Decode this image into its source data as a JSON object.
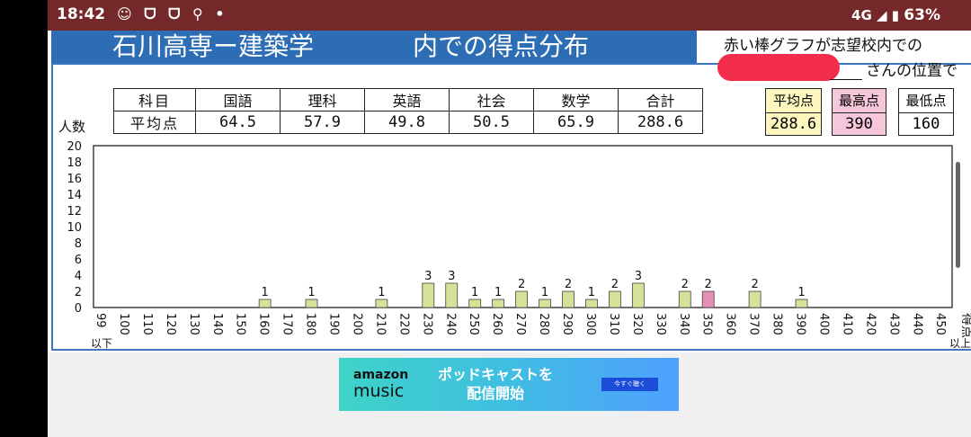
{
  "status_bar": {
    "time": "18:42",
    "notification_icons": "☺ ᗜ ᗜ ⚲ •",
    "network": "4G",
    "battery": "63%"
  },
  "header": {
    "title_left": "石川高専ー建築学",
    "title_right": "内での得点分布",
    "note_line1": "赤い棒グラフが志望校内での",
    "note_line2": "さんの位置で"
  },
  "score_table": {
    "header": [
      "科目",
      "国語",
      "理科",
      "英語",
      "社会",
      "数学",
      "合計"
    ],
    "averages": [
      "平均点",
      "64.5",
      "57.9",
      "49.8",
      "50.5",
      "65.9",
      "288.6"
    ]
  },
  "summary": {
    "avg_label": "平均点",
    "avg_value": "288.6",
    "max_label": "最高点",
    "max_value": "390",
    "min_label": "最低点",
    "min_value": "160",
    "avg_color": "#fdf7bf",
    "max_color": "#f6c7da",
    "min_color": "#ffffff"
  },
  "chart_data": {
    "type": "bar",
    "title": "石川高専ー建築学 内での得点分布",
    "ylabel": "人数",
    "xlabel": "得点",
    "ylim": [
      0,
      20
    ],
    "yticks": [
      0,
      2,
      4,
      6,
      8,
      10,
      12,
      14,
      16,
      18,
      20
    ],
    "categories": [
      "99",
      "100",
      "110",
      "120",
      "130",
      "140",
      "150",
      "160",
      "170",
      "180",
      "190",
      "200",
      "210",
      "220",
      "230",
      "240",
      "250",
      "260",
      "270",
      "280",
      "290",
      "300",
      "310",
      "320",
      "330",
      "340",
      "350",
      "360",
      "370",
      "380",
      "390",
      "400",
      "410",
      "420",
      "430",
      "440",
      "450"
    ],
    "values": [
      0,
      0,
      0,
      0,
      0,
      0,
      0,
      1,
      0,
      1,
      0,
      0,
      1,
      0,
      3,
      3,
      1,
      1,
      2,
      1,
      2,
      1,
      2,
      3,
      0,
      2,
      2,
      0,
      2,
      0,
      1,
      0,
      0,
      0,
      0,
      0,
      0
    ],
    "highlight_category": "350",
    "x_first_note": "以下",
    "x_last_note": "以上",
    "bar_color": "#d6e29a",
    "highlight_color": "#e58fb6"
  },
  "ad": {
    "brand_top": "amazon",
    "brand_bottom": "music",
    "line1": "ポッドキャストを",
    "line2": "配信開始",
    "cta": "今すぐ聴く"
  }
}
